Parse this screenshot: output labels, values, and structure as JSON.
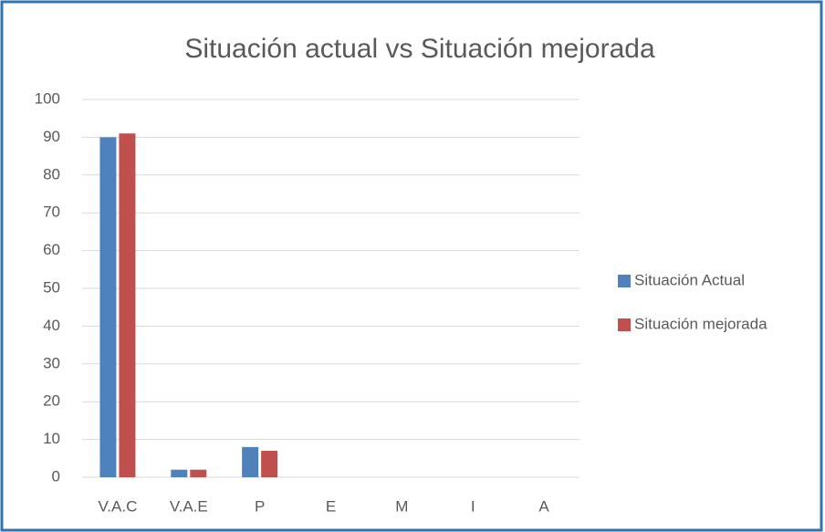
{
  "chart_data": {
    "type": "bar",
    "title": "Situación actual vs Situación mejorada",
    "categories": [
      "V.A.C",
      "V.A.E",
      "P",
      "E",
      "M",
      "I",
      "A"
    ],
    "series": [
      {
        "name": "Situación Actual",
        "color": "#4f81bd",
        "values": [
          90,
          2,
          8,
          0,
          0,
          0,
          0
        ]
      },
      {
        "name": "Situación mejorada",
        "color": "#c0504d",
        "values": [
          91,
          2,
          7,
          0,
          0,
          0,
          0
        ]
      }
    ],
    "ylim": [
      0,
      100
    ],
    "yticks": [
      0,
      10,
      20,
      30,
      40,
      50,
      60,
      70,
      80,
      90,
      100
    ],
    "grid": true,
    "legend": "right"
  }
}
